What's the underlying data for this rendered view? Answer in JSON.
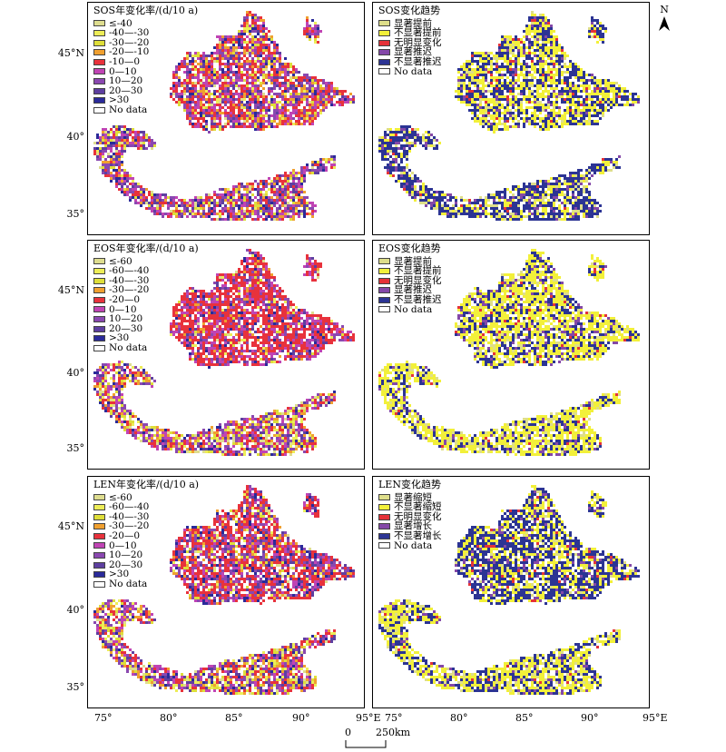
{
  "panels": [
    {
      "id": "sos-rate",
      "title": "SOS年变化率/(d/10 a)",
      "legend": [
        "≤-40",
        "-40—-30",
        "-30—-20",
        "-20—-10",
        "-10—0",
        "0—10",
        "10—20",
        "20—30",
        ">30",
        "No data"
      ],
      "colors": [
        "#dedd8f",
        "#eded58",
        "#dede3a",
        "#f0a030",
        "#e8323c",
        "#c044b4",
        "#8a48b0",
        "#5e3fa0",
        "#2a2a9a",
        "#ffffff"
      ],
      "palette": "rate"
    },
    {
      "id": "sos-trend",
      "title": "SOS变化趋势",
      "legend": [
        "显著提前",
        "不显著提前",
        "无明显变化",
        "显著推迟",
        "不显著推迟",
        "No data"
      ],
      "colors": [
        "#dede8a",
        "#f2f03a",
        "#e53238",
        "#8448a8",
        "#2c3494",
        "#ffffff"
      ],
      "palette": "trend"
    },
    {
      "id": "eos-rate",
      "title": "EOS年变化率/(d/10 a)",
      "legend": [
        "≤-60",
        "-60—-40",
        "-40—-30",
        "-30—-20",
        "-20—0",
        "0—10",
        "10—20",
        "20—30",
        ">30",
        "No data"
      ],
      "colors": [
        "#dedd8f",
        "#eded58",
        "#dede3a",
        "#f0a030",
        "#e8323c",
        "#c044b4",
        "#8a48b0",
        "#5e3fa0",
        "#2a2a9a",
        "#ffffff"
      ],
      "palette": "eos"
    },
    {
      "id": "eos-trend",
      "title": "EOS变化趋势",
      "legend": [
        "显著提前",
        "不显著提前",
        "无明显变化",
        "显著推迟",
        "不显著推迟",
        "No data"
      ],
      "colors": [
        "#dede8a",
        "#f2f03a",
        "#e53238",
        "#8448a8",
        "#2c3494",
        "#ffffff"
      ],
      "palette": "trend2"
    },
    {
      "id": "len-rate",
      "title": "LEN年变化率/(d/10 a)",
      "legend": [
        "≤-60",
        "-60—-40",
        "-40—-30",
        "-30—-20",
        "-20—0",
        "0—10",
        "10—20",
        "20—30",
        ">30",
        "No data"
      ],
      "colors": [
        "#dedd8f",
        "#eded58",
        "#dede3a",
        "#f0a030",
        "#e8323c",
        "#c044b4",
        "#8a48b0",
        "#5e3fa0",
        "#2a2a9a",
        "#ffffff"
      ],
      "palette": "len"
    },
    {
      "id": "len-trend",
      "title": "LEN变化趋势",
      "legend": [
        "显著缩短",
        "不显著缩短",
        "无明显变化",
        "显著增长",
        "不显著增长",
        "No data"
      ],
      "colors": [
        "#dede8a",
        "#f2f03a",
        "#e53238",
        "#8448a8",
        "#2c3494",
        "#ffffff"
      ],
      "palette": "trend3"
    }
  ],
  "lat_labels": [
    "45°N",
    "40°",
    "35°"
  ],
  "lon_labels": [
    "75°",
    "80°",
    "85°",
    "90°",
    "95°E"
  ],
  "north_label": "N",
  "scale": {
    "zero": "0",
    "distance": "250km"
  }
}
